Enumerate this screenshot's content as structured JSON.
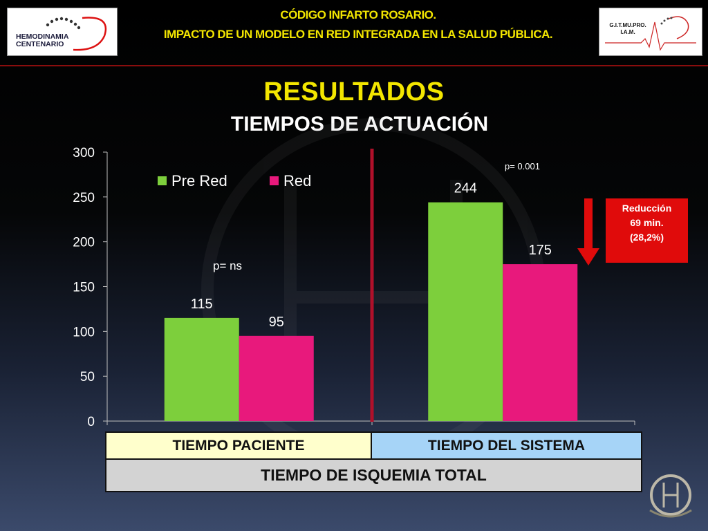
{
  "header": {
    "line1": "CÓDIGO INFARTO ROSARIO.",
    "line2": "IMPACTO DE UN MODELO EN RED INTEGRADA EN LA SALUD PÚBLICA.",
    "logo_left_text": "HEMODINAMIA\nCENTENARIO",
    "logo_right_text": "G.I.T.MU.PRO.\nI.A.M."
  },
  "slide": {
    "title": "RESULTADOS",
    "subtitle": "TIEMPOS DE ACTUACIÓN"
  },
  "annotations": {
    "p_left": "p= ns",
    "p_right": "p= 0.001",
    "reduction_line1": "Reducción",
    "reduction_line2": "69 min.",
    "reduction_line3": "(28,2%)"
  },
  "table": {
    "paciente": "TIEMPO PACIENTE",
    "sistema": "TIEMPO DEL SISTEMA",
    "isquemia": "TIEMPO DE ISQUEMIA TOTAL"
  },
  "colors": {
    "pre_red": "#7dcf3c",
    "red": "#e8197c",
    "accent_yellow": "#f3e600",
    "divider": "#b0102a",
    "arrow": "#e00b0b"
  },
  "chart_data": {
    "type": "bar",
    "categories": [
      "TIEMPO PACIENTE",
      "TIEMPO DEL SISTEMA"
    ],
    "series": [
      {
        "name": "Pre Red",
        "values": [
          115,
          244
        ]
      },
      {
        "name": "Red",
        "values": [
          95,
          175
        ]
      }
    ],
    "ylim": [
      0,
      300
    ],
    "yticks": [
      0,
      50,
      100,
      150,
      200,
      250,
      300
    ],
    "legend": "top-left",
    "grid": false,
    "data_labels": true
  }
}
